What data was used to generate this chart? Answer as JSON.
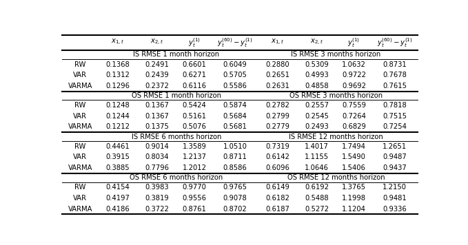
{
  "col_headers": [
    "$x_{1,t}$",
    "$x_{2,t}$",
    "$y_t^{(1)}$",
    "$y_t^{(60)}-y_t^{(1)}$",
    "$x_{1,t}$",
    "$x_{2,t}$",
    "$y_t^{(1)}$",
    "$y_t^{(60)}-y_t^{(1)}$"
  ],
  "section_headers": [
    [
      "IS RMSE 1 month horizon",
      "IS RMSE 3 months horizon"
    ],
    [
      "OS RMSE 1 month horizon",
      "OS RMSE 3 months horizon"
    ],
    [
      "IS RMSE 6 months horizon",
      "IS RMSE 12 months horizon"
    ],
    [
      "OS RMSE 6 months horizon",
      "OS RMSE 12 months horizon"
    ]
  ],
  "row_labels": [
    "RW",
    "VAR",
    "VARMA"
  ],
  "data": [
    [
      [
        0.1368,
        0.2491,
        0.6601,
        0.6049,
        0.288,
        0.5309,
        1.0632,
        0.8731
      ],
      [
        0.1312,
        0.2439,
        0.6271,
        0.5705,
        0.2651,
        0.4993,
        0.9722,
        0.7678
      ],
      [
        0.1296,
        0.2372,
        0.6116,
        0.5586,
        0.2631,
        0.4858,
        0.9692,
        0.7615
      ]
    ],
    [
      [
        0.1248,
        0.1367,
        0.5424,
        0.5874,
        0.2782,
        0.2557,
        0.7559,
        0.7818
      ],
      [
        0.1244,
        0.1367,
        0.5161,
        0.5684,
        0.2799,
        0.2545,
        0.7264,
        0.7515
      ],
      [
        0.1212,
        0.1375,
        0.5076,
        0.5681,
        0.2779,
        0.2493,
        0.6829,
        0.7254
      ]
    ],
    [
      [
        0.4461,
        0.9014,
        1.3589,
        1.051,
        0.7319,
        1.4017,
        1.7494,
        1.2651
      ],
      [
        0.3915,
        0.8034,
        1.2137,
        0.8711,
        0.6142,
        1.1155,
        1.549,
        0.9487
      ],
      [
        0.3885,
        0.7796,
        1.2012,
        0.8586,
        0.6096,
        1.0646,
        1.5406,
        0.9437
      ]
    ],
    [
      [
        0.4154,
        0.3983,
        0.977,
        0.9765,
        0.6149,
        0.6192,
        1.3765,
        1.215
      ],
      [
        0.4197,
        0.3819,
        0.9556,
        0.9078,
        0.6182,
        0.5488,
        1.1998,
        0.9481
      ],
      [
        0.4186,
        0.3722,
        0.8761,
        0.8702,
        0.6187,
        0.5272,
        1.1204,
        0.9336
      ]
    ]
  ]
}
